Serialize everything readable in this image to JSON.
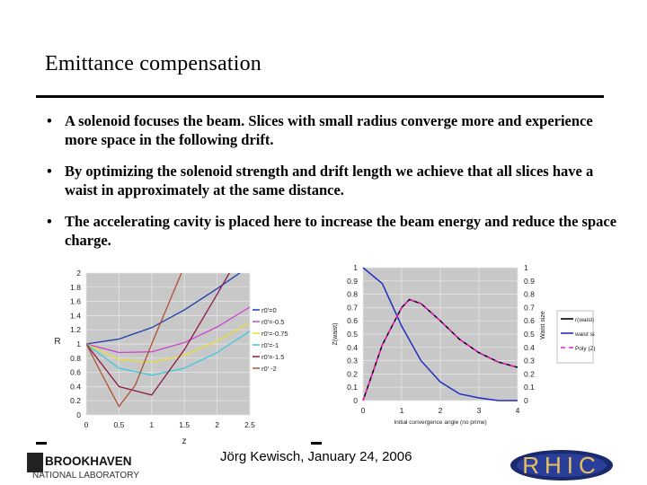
{
  "slide": {
    "title": "Emittance compensation",
    "bullets": [
      "A solenoid focuses the beam. Slices with small radius converge more and experience more space in the following drift.",
      "By optimizing the solenoid strength and drift length we achieve that all slices have a waist in approximately at the same distance.",
      "The accelerating cavity is placed here to increase the beam energy and reduce the space charge."
    ],
    "bullet_symbol": "•",
    "footer": "Jörg Kewisch, January 24, 2006",
    "logos": {
      "left": [
        "BROOKHAVEN",
        "NATIONAL LABORATORY"
      ],
      "right": "RHIC"
    }
  },
  "chart_data": [
    {
      "type": "line",
      "xlabel": "z",
      "ylabel": "R",
      "xlim": [
        0,
        2.5
      ],
      "ylim": [
        0,
        2
      ],
      "x_ticks": [
        "0",
        "0.5",
        "1",
        "1.5",
        "2",
        "2.5"
      ],
      "y_ticks": [
        "0",
        "0.2",
        "0.4",
        "0.6",
        "0.8",
        "1",
        "1.2",
        "1.4",
        "1.6",
        "1.8",
        "2"
      ],
      "grid": true,
      "legend_position": "right",
      "series": [
        {
          "name": "r0'=0",
          "color": "#1f3fa8",
          "x": [
            0,
            0.5,
            1,
            1.5,
            2,
            2.5
          ],
          "y": [
            1,
            1.07,
            1.23,
            1.48,
            1.78,
            2.1
          ]
        },
        {
          "name": "r0'=-0.5",
          "color": "#cc44cc",
          "x": [
            0,
            0.5,
            1,
            1.5,
            2,
            2.5
          ],
          "y": [
            1,
            0.88,
            0.89,
            1.02,
            1.24,
            1.52
          ]
        },
        {
          "name": "r0'=-0.75",
          "color": "#e8e030",
          "x": [
            0,
            0.5,
            1,
            1.5,
            2,
            2.5
          ],
          "y": [
            1,
            0.78,
            0.74,
            0.84,
            1.04,
            1.3
          ]
        },
        {
          "name": "r0'=-1",
          "color": "#40c8e0",
          "x": [
            0,
            0.5,
            1,
            1.5,
            2,
            2.5
          ],
          "y": [
            1,
            0.66,
            0.56,
            0.66,
            0.88,
            1.18
          ]
        },
        {
          "name": "r0'=-1.5",
          "color": "#8b1a4a",
          "x": [
            0,
            0.5,
            1,
            1.5,
            2,
            2.5
          ],
          "y": [
            1,
            0.4,
            0.28,
            0.92,
            1.7,
            2.5
          ]
        },
        {
          "name": "r0' -2",
          "color": "#b05030",
          "x": [
            0,
            0.25,
            0.5,
            0.75,
            1,
            1.5,
            2
          ],
          "y": [
            1,
            0.55,
            0.12,
            0.42,
            1.0,
            2.1,
            3.2
          ]
        }
      ]
    },
    {
      "type": "line",
      "xlabel": "Initial convergence angle (no prime)",
      "ylabel": "Z(waist)",
      "y2label": "Waist size",
      "xlim": [
        0,
        4
      ],
      "ylim": [
        0,
        1
      ],
      "x_ticks": [
        "0",
        "1",
        "2",
        "3",
        "4"
      ],
      "y_ticks": [
        "0",
        "0.1",
        "0.2",
        "0.3",
        "0.4",
        "0.5",
        "0.6",
        "0.7",
        "0.8",
        "0.9",
        "1"
      ],
      "y2_ticks": [
        "0",
        "0.1",
        "0.2",
        "0.3",
        "0.4",
        "0.5",
        "0.6",
        "0.7",
        "0.8",
        "0.9",
        "1"
      ],
      "grid": true,
      "legend_position": "right",
      "series": [
        {
          "name": "r(waist)",
          "color": "#000000",
          "x": [
            0,
            0.5,
            1,
            1.2,
            1.5,
            2,
            2.5,
            3,
            3.5,
            4
          ],
          "y": [
            0,
            0.42,
            0.7,
            0.76,
            0.73,
            0.6,
            0.46,
            0.36,
            0.29,
            0.25
          ]
        },
        {
          "name": "waist size",
          "color": "#1f2fbf",
          "x": [
            0,
            0.5,
            1,
            1.5,
            2,
            2.5,
            3,
            3.5,
            4
          ],
          "y": [
            1,
            0.88,
            0.56,
            0.3,
            0.14,
            0.05,
            0.02,
            0.0,
            0.0
          ]
        },
        {
          "name": "Poly (Z(waist))",
          "color": "#e020c0",
          "x": [
            0,
            0.5,
            1,
            1.2,
            1.5,
            2,
            2.5,
            3,
            3.5,
            4
          ],
          "y": [
            0,
            0.42,
            0.7,
            0.76,
            0.73,
            0.6,
            0.46,
            0.36,
            0.29,
            0.25
          ]
        }
      ]
    }
  ]
}
